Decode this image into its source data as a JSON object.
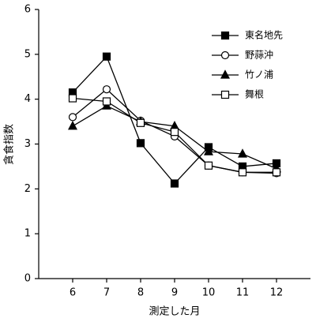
{
  "chart_data": {
    "type": "line",
    "x_label": "測定した月",
    "y_label": "貪食指数",
    "x": [
      6,
      7,
      8,
      9,
      10,
      11,
      12
    ],
    "series": [
      {
        "name": "東名地先",
        "color": "#000000",
        "marker": "square",
        "marker_fill": "#000000",
        "values": [
          4.15,
          4.95,
          3.02,
          2.12,
          2.93,
          2.5,
          2.57
        ]
      },
      {
        "name": "野蒜沖",
        "color": "#000000",
        "marker": "circle",
        "marker_fill": "#ffffff",
        "values": [
          3.6,
          4.22,
          3.52,
          3.17,
          2.52,
          2.37,
          2.35
        ]
      },
      {
        "name": "竹ノ浦",
        "color": "#000000",
        "marker": "triangle",
        "marker_fill": "#000000",
        "values": [
          3.4,
          3.85,
          3.5,
          3.4,
          2.83,
          2.78,
          2.45
        ]
      },
      {
        "name": "舞根",
        "color": "#000000",
        "marker": "square",
        "marker_fill": "#ffffff",
        "values": [
          4.02,
          3.95,
          3.47,
          3.27,
          2.52,
          2.37,
          2.37
        ]
      }
    ],
    "xlim": [
      5,
      13
    ],
    "xticks": [
      6,
      7,
      8,
      9,
      10,
      11,
      12
    ],
    "ylim": [
      0,
      6
    ],
    "yticks": [
      0,
      1,
      2,
      3,
      4,
      5,
      6
    ],
    "legend": "upper right"
  }
}
